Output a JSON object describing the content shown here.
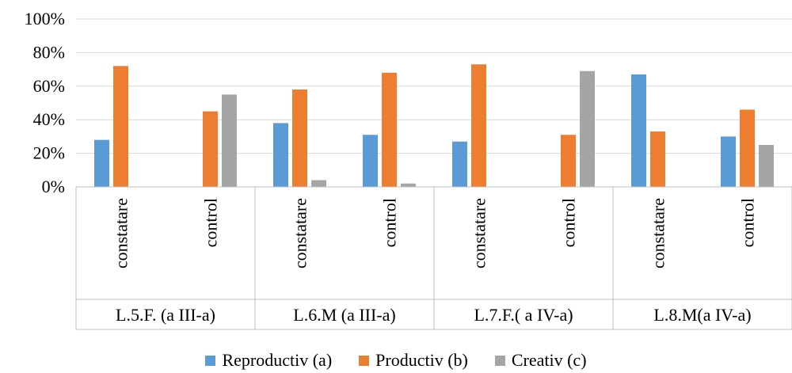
{
  "chart_data": {
    "type": "bar",
    "ylim": [
      0,
      100
    ],
    "yticks": [
      "0%",
      "20%",
      "40%",
      "60%",
      "80%",
      "100%"
    ],
    "groups": [
      "L.5.F. (a III-a)",
      "L.6.M (a III-a)",
      "L.7.F.( a IV-a)",
      "L.8.M(a IV-a)"
    ],
    "categories": [
      "constatare",
      "control",
      "constatare",
      "control",
      "constatare",
      "control",
      "constatare",
      "control"
    ],
    "series": [
      {
        "name": "Reproductiv (a)",
        "color": "#5B9BD5",
        "values": [
          28,
          0,
          38,
          31,
          27,
          0,
          67,
          30
        ]
      },
      {
        "name": "Productiv (b)",
        "color": "#ED7D31",
        "values": [
          72,
          45,
          58,
          68,
          73,
          31,
          33,
          46
        ]
      },
      {
        "name": "Creativ (c)",
        "color": "#A5A5A5",
        "values": [
          0,
          55,
          4,
          2,
          0,
          69,
          0,
          25
        ]
      }
    ]
  }
}
